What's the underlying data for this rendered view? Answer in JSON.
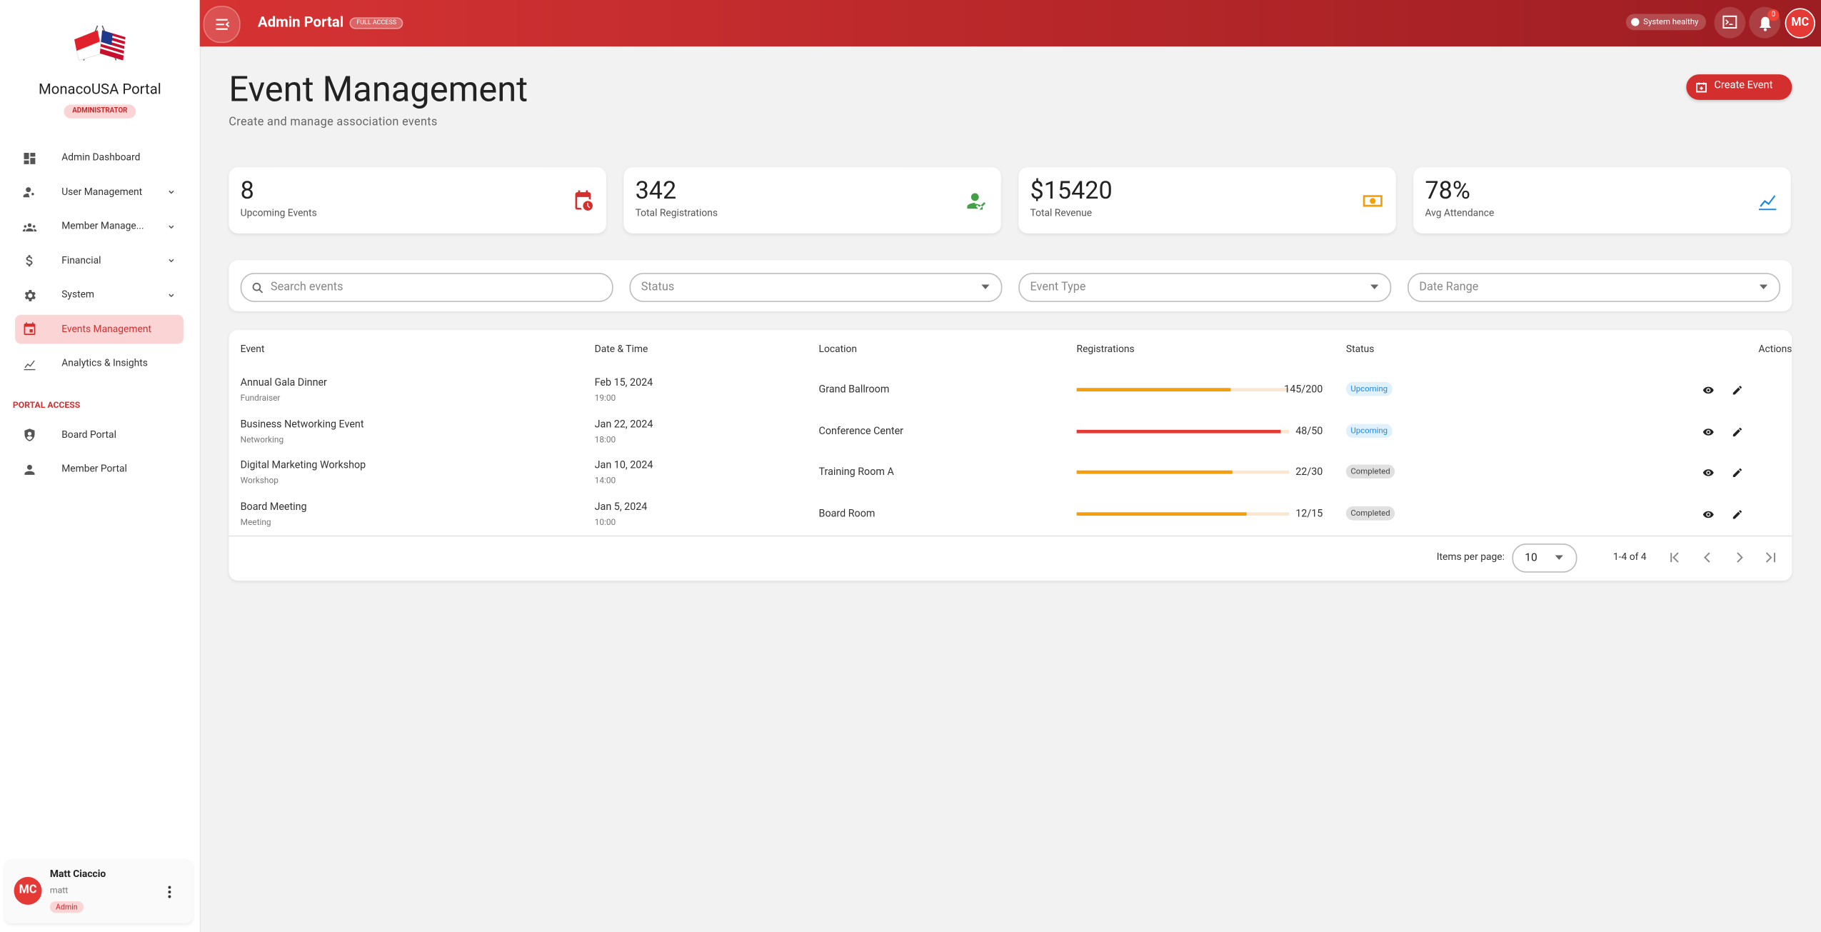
{
  "topbar": {
    "title": "Admin Portal",
    "badge": "FULL ACCESS",
    "status": "System healthy",
    "notifications": "0",
    "avatar": "MC"
  },
  "sidebar": {
    "brand": "MonacoUSA Portal",
    "role": "ADMINISTRATOR",
    "nav": [
      {
        "label": "Admin Dashboard",
        "expandable": false,
        "active": false
      },
      {
        "label": "User Management",
        "expandable": true,
        "active": false
      },
      {
        "label": "Member Manage...",
        "expandable": true,
        "active": false
      },
      {
        "label": "Financial",
        "expandable": true,
        "active": false
      },
      {
        "label": "System",
        "expandable": true,
        "active": false
      },
      {
        "label": "Events Management",
        "expandable": false,
        "active": true
      },
      {
        "label": "Analytics & Insights",
        "expandable": false,
        "active": false
      }
    ],
    "portal_title": "PORTAL ACCESS",
    "portal_links": [
      "Board Portal",
      "Member Portal"
    ],
    "user": {
      "initials": "MC",
      "name": "Matt Ciaccio",
      "username": "matt",
      "role": "Admin"
    }
  },
  "header": {
    "title": "Event Management",
    "subtitle": "Create and manage association events",
    "button": "Create Event"
  },
  "stats": [
    {
      "value": "8",
      "label": "Upcoming Events"
    },
    {
      "value": "342",
      "label": "Total Registrations"
    },
    {
      "value": "$15420",
      "label": "Total Revenue"
    },
    {
      "value": "78%",
      "label": "Avg Attendance"
    }
  ],
  "filters": [
    "Search events",
    "Status",
    "Event Type",
    "Date Range"
  ],
  "table": {
    "columns": [
      "Event",
      "Date & Time",
      "Location",
      "Registrations",
      "Status",
      "Actions"
    ],
    "rows": [
      {
        "event": "Annual Gala Dinner",
        "type": "Fundraiser",
        "date": "Feb 15, 2024",
        "time": "19:00",
        "location": "Grand Ballroom",
        "registrations": {
          "label": "145/200",
          "registered": 145,
          "capacity": 200
        },
        "status": "Upcoming"
      },
      {
        "event": "Business Networking Event",
        "type": "Networking",
        "date": "Jan 22, 2024",
        "time": "18:00",
        "location": "Conference Center",
        "registrations": {
          "label": "48/50",
          "registered": 48,
          "capacity": 50
        },
        "status": "Upcoming"
      },
      {
        "event": "Digital Marketing Workshop",
        "type": "Workshop",
        "date": "Jan 10, 2024",
        "time": "14:00",
        "location": "Training Room A",
        "registrations": {
          "label": "22/30",
          "registered": 22,
          "capacity": 30
        },
        "status": "Completed"
      },
      {
        "event": "Board Meeting",
        "type": "Meeting",
        "date": "Jan 5, 2024",
        "time": "10:00",
        "location": "Board Room",
        "registrations": {
          "label": "12/15",
          "registered": 12,
          "capacity": 15
        },
        "status": "Completed"
      }
    ],
    "items_per_page_label": "Items per page:",
    "items_per_page": "10",
    "range": "1-4 of 4"
  }
}
